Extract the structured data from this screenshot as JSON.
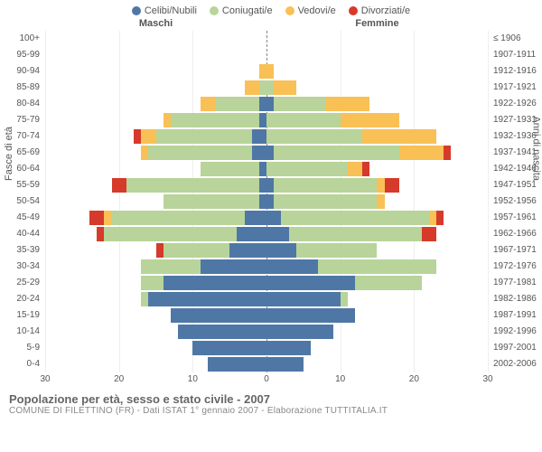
{
  "type": "population-pyramid",
  "legend": [
    {
      "label": "Celibi/Nubili",
      "color": "#4f77a6"
    },
    {
      "label": "Coniugati/e",
      "color": "#b8d49a"
    },
    {
      "label": "Vedovi/e",
      "color": "#f9c056"
    },
    {
      "label": "Divorziati/e",
      "color": "#d63a2a"
    }
  ],
  "headers": {
    "male": "Maschi",
    "female": "Femmine"
  },
  "yaxis_left_title": "Fasce di età",
  "yaxis_right_title": "Anni di nascita",
  "x_max": 30,
  "x_ticks": [
    30,
    20,
    10,
    0,
    10,
    20,
    30
  ],
  "bar_gap": 1,
  "rows": [
    {
      "age": "100+",
      "birth": "≤ 1906",
      "m": [
        0,
        0,
        0,
        0
      ],
      "f": [
        0,
        0,
        0,
        0
      ]
    },
    {
      "age": "95-99",
      "birth": "1907-1911",
      "m": [
        0,
        0,
        0,
        0
      ],
      "f": [
        0,
        0,
        0,
        0
      ]
    },
    {
      "age": "90-94",
      "birth": "1912-1916",
      "m": [
        0,
        0,
        1,
        0
      ],
      "f": [
        0,
        0,
        1,
        0
      ]
    },
    {
      "age": "85-89",
      "birth": "1917-1921",
      "m": [
        0,
        1,
        2,
        0
      ],
      "f": [
        0,
        1,
        3,
        0
      ]
    },
    {
      "age": "80-84",
      "birth": "1922-1926",
      "m": [
        1,
        6,
        2,
        0
      ],
      "f": [
        1,
        7,
        6,
        0
      ]
    },
    {
      "age": "75-79",
      "birth": "1927-1931",
      "m": [
        1,
        12,
        1,
        0
      ],
      "f": [
        0,
        10,
        8,
        0
      ]
    },
    {
      "age": "70-74",
      "birth": "1932-1936",
      "m": [
        2,
        13,
        2,
        1
      ],
      "f": [
        0,
        13,
        10,
        0
      ]
    },
    {
      "age": "65-69",
      "birth": "1937-1941",
      "m": [
        2,
        14,
        1,
        0
      ],
      "f": [
        1,
        17,
        6,
        1
      ]
    },
    {
      "age": "60-64",
      "birth": "1942-1946",
      "m": [
        1,
        8,
        0,
        0
      ],
      "f": [
        0,
        11,
        2,
        1
      ]
    },
    {
      "age": "55-59",
      "birth": "1947-1951",
      "m": [
        1,
        18,
        0,
        2
      ],
      "f": [
        1,
        14,
        1,
        2
      ]
    },
    {
      "age": "50-54",
      "birth": "1952-1956",
      "m": [
        1,
        13,
        0,
        0
      ],
      "f": [
        1,
        14,
        1,
        0
      ]
    },
    {
      "age": "45-49",
      "birth": "1957-1961",
      "m": [
        3,
        18,
        1,
        2
      ],
      "f": [
        2,
        20,
        1,
        1
      ]
    },
    {
      "age": "40-44",
      "birth": "1962-1966",
      "m": [
        4,
        18,
        0,
        1
      ],
      "f": [
        3,
        18,
        0,
        2
      ]
    },
    {
      "age": "35-39",
      "birth": "1967-1971",
      "m": [
        5,
        9,
        0,
        1
      ],
      "f": [
        4,
        11,
        0,
        0
      ]
    },
    {
      "age": "30-34",
      "birth": "1972-1976",
      "m": [
        9,
        8,
        0,
        0
      ],
      "f": [
        7,
        16,
        0,
        0
      ]
    },
    {
      "age": "25-29",
      "birth": "1977-1981",
      "m": [
        14,
        3,
        0,
        0
      ],
      "f": [
        12,
        9,
        0,
        0
      ]
    },
    {
      "age": "20-24",
      "birth": "1982-1986",
      "m": [
        16,
        1,
        0,
        0
      ],
      "f": [
        10,
        1,
        0,
        0
      ]
    },
    {
      "age": "15-19",
      "birth": "1987-1991",
      "m": [
        13,
        0,
        0,
        0
      ],
      "f": [
        12,
        0,
        0,
        0
      ]
    },
    {
      "age": "10-14",
      "birth": "1992-1996",
      "m": [
        12,
        0,
        0,
        0
      ],
      "f": [
        9,
        0,
        0,
        0
      ]
    },
    {
      "age": "5-9",
      "birth": "1997-2001",
      "m": [
        10,
        0,
        0,
        0
      ],
      "f": [
        6,
        0,
        0,
        0
      ]
    },
    {
      "age": "0-4",
      "birth": "2002-2006",
      "m": [
        8,
        0,
        0,
        0
      ],
      "f": [
        5,
        0,
        0,
        0
      ]
    }
  ],
  "footer": {
    "title": "Popolazione per età, sesso e stato civile - 2007",
    "subtitle": "COMUNE DI FILETTINO (FR) - Dati ISTAT 1° gennaio 2007 - Elaborazione TUTTITALIA.IT"
  },
  "background_color": "#ffffff",
  "grid_color": "#eeeeee",
  "text_color": "#555555"
}
